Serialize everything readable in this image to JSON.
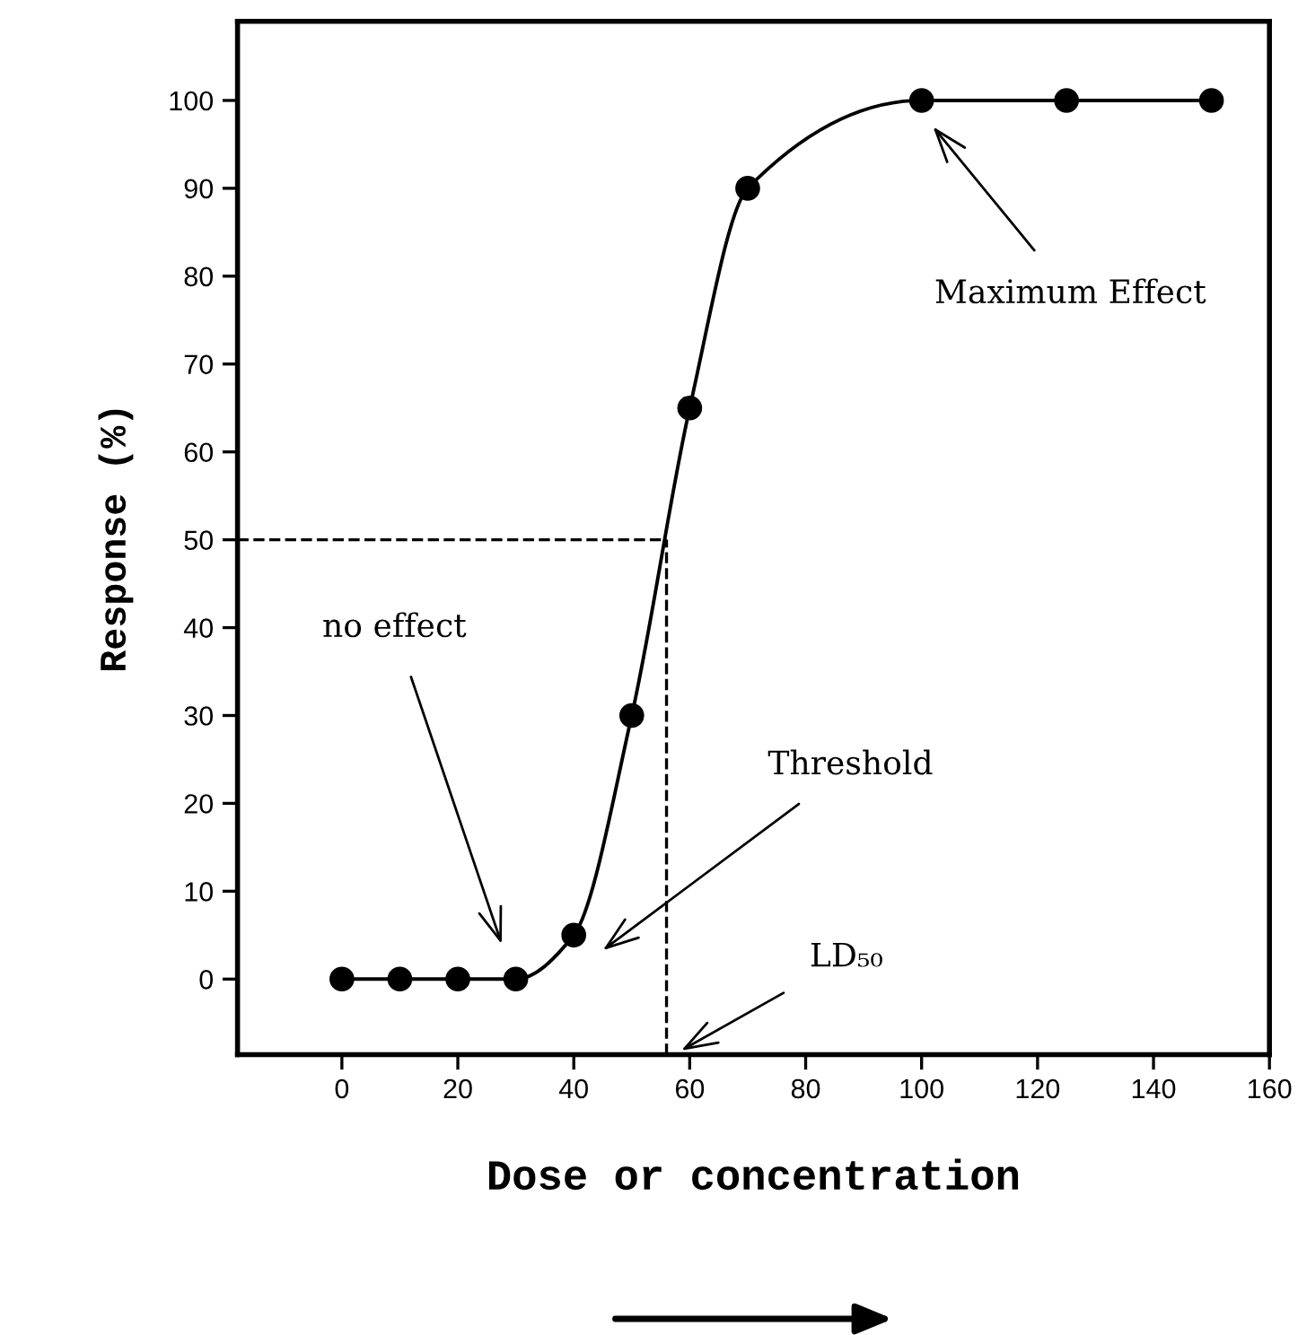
{
  "chart_data": {
    "type": "scatter",
    "xlabel": "Dose or concentration",
    "ylabel": "Response (%)",
    "xlim": [
      -18,
      160
    ],
    "ylim": [
      -8.6,
      109
    ],
    "xticks": [
      0,
      20,
      40,
      60,
      80,
      100,
      120,
      140,
      160
    ],
    "yticks": [
      0,
      10,
      20,
      30,
      40,
      50,
      60,
      70,
      80,
      90,
      100
    ],
    "grid": false,
    "marker": "circle",
    "series": [
      {
        "type": "line",
        "color": "#000000",
        "marker": "none",
        "x": [
          0,
          10,
          20,
          30,
          40,
          50,
          60,
          70,
          100,
          125,
          150
        ],
        "values": [
          0,
          0,
          0,
          0,
          5,
          30,
          65,
          90,
          100,
          100,
          100
        ]
      },
      {
        "color": "#000000",
        "x": [
          0,
          10,
          20,
          30,
          40,
          50,
          60,
          70,
          100,
          125,
          150
        ],
        "values": [
          0,
          0,
          0,
          0,
          5,
          30,
          65,
          90,
          100,
          100,
          100
        ]
      }
    ],
    "ref_lines": [
      {
        "axis": "y",
        "value": 50,
        "line_style": "dashed",
        "color": "#000000"
      },
      {
        "axis": "x",
        "value": 56,
        "line_style": "dashed",
        "color": "#000000"
      }
    ],
    "annotations": [
      "no effect",
      "Threshold",
      "LD₅₀",
      "Maximum Effect"
    ]
  }
}
